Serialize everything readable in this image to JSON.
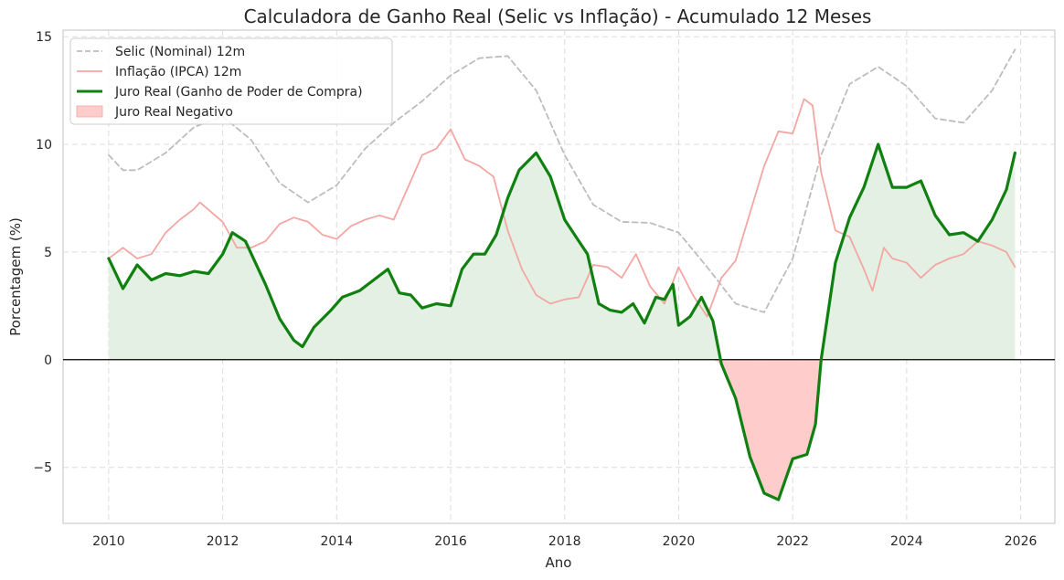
{
  "chart_data": {
    "type": "line",
    "title": "Calculadora de Ganho Real (Selic vs Inflação) - Acumulado 12 Meses",
    "xlabel": "Ano",
    "ylabel": "Porcentagem (%)",
    "xlim": [
      2009.2,
      2026.6
    ],
    "ylim": [
      -7.6,
      15.3
    ],
    "x_ticks": [
      2010,
      2012,
      2014,
      2016,
      2018,
      2020,
      2022,
      2024,
      2026
    ],
    "y_ticks": [
      -5,
      0,
      5,
      10,
      15
    ],
    "x_tick_labels": [
      "2010",
      "2012",
      "2014",
      "2016",
      "2018",
      "2020",
      "2022",
      "2024",
      "2026"
    ],
    "y_tick_labels": [
      "−5",
      "0",
      "5",
      "10",
      "15"
    ],
    "grid": true,
    "legend_position": "top-left",
    "zero_line": true,
    "series": [
      {
        "name": "Selic (Nominal) 12m",
        "color": "#bdbdbd",
        "style": "dashed",
        "points": [
          [
            2010.0,
            9.5
          ],
          [
            2010.25,
            8.8
          ],
          [
            2010.5,
            8.8
          ],
          [
            2011.0,
            9.6
          ],
          [
            2011.5,
            10.8
          ],
          [
            2012.0,
            11.3
          ],
          [
            2012.5,
            10.2
          ],
          [
            2013.0,
            8.2
          ],
          [
            2013.5,
            7.3
          ],
          [
            2014.0,
            8.1
          ],
          [
            2014.5,
            9.8
          ],
          [
            2015.0,
            11.0
          ],
          [
            2015.5,
            12.0
          ],
          [
            2016.0,
            13.2
          ],
          [
            2016.5,
            14.0
          ],
          [
            2017.0,
            14.1
          ],
          [
            2017.5,
            12.5
          ],
          [
            2018.0,
            9.5
          ],
          [
            2018.5,
            7.2
          ],
          [
            2019.0,
            6.4
          ],
          [
            2019.5,
            6.35
          ],
          [
            2020.0,
            5.9
          ],
          [
            2020.5,
            4.3
          ],
          [
            2021.0,
            2.6
          ],
          [
            2021.5,
            2.2
          ],
          [
            2022.0,
            4.7
          ],
          [
            2022.5,
            9.5
          ],
          [
            2023.0,
            12.8
          ],
          [
            2023.5,
            13.6
          ],
          [
            2024.0,
            12.7
          ],
          [
            2024.5,
            11.2
          ],
          [
            2025.0,
            11.0
          ],
          [
            2025.5,
            12.5
          ],
          [
            2025.9,
            14.4
          ]
        ]
      },
      {
        "name": "Inflação (IPCA) 12m",
        "color": "#f4a6a3",
        "style": "solid",
        "points": [
          [
            2010.0,
            4.7
          ],
          [
            2010.25,
            5.2
          ],
          [
            2010.5,
            4.7
          ],
          [
            2010.75,
            4.9
          ],
          [
            2011.0,
            5.9
          ],
          [
            2011.25,
            6.5
          ],
          [
            2011.5,
            7.0
          ],
          [
            2011.6,
            7.3
          ],
          [
            2012.0,
            6.4
          ],
          [
            2012.25,
            5.2
          ],
          [
            2012.5,
            5.2
          ],
          [
            2012.75,
            5.5
          ],
          [
            2013.0,
            6.3
          ],
          [
            2013.25,
            6.6
          ],
          [
            2013.5,
            6.4
          ],
          [
            2013.75,
            5.8
          ],
          [
            2014.0,
            5.6
          ],
          [
            2014.25,
            6.2
          ],
          [
            2014.5,
            6.5
          ],
          [
            2014.75,
            6.7
          ],
          [
            2015.0,
            6.5
          ],
          [
            2015.25,
            8.0
          ],
          [
            2015.5,
            9.5
          ],
          [
            2015.75,
            9.8
          ],
          [
            2016.0,
            10.7
          ],
          [
            2016.25,
            9.3
          ],
          [
            2016.5,
            9.0
          ],
          [
            2016.75,
            8.5
          ],
          [
            2017.0,
            6.0
          ],
          [
            2017.25,
            4.2
          ],
          [
            2017.5,
            3.0
          ],
          [
            2017.75,
            2.6
          ],
          [
            2018.0,
            2.8
          ],
          [
            2018.25,
            2.9
          ],
          [
            2018.5,
            4.4
          ],
          [
            2018.75,
            4.3
          ],
          [
            2019.0,
            3.8
          ],
          [
            2019.25,
            4.9
          ],
          [
            2019.5,
            3.4
          ],
          [
            2019.75,
            2.6
          ],
          [
            2020.0,
            4.3
          ],
          [
            2020.25,
            3.0
          ],
          [
            2020.5,
            2.0
          ],
          [
            2020.75,
            3.8
          ],
          [
            2021.0,
            4.6
          ],
          [
            2021.25,
            6.8
          ],
          [
            2021.5,
            9.0
          ],
          [
            2021.75,
            10.6
          ],
          [
            2022.0,
            10.5
          ],
          [
            2022.2,
            12.1
          ],
          [
            2022.35,
            11.8
          ],
          [
            2022.5,
            8.7
          ],
          [
            2022.75,
            6.0
          ],
          [
            2023.0,
            5.7
          ],
          [
            2023.25,
            4.2
          ],
          [
            2023.4,
            3.2
          ],
          [
            2023.6,
            5.2
          ],
          [
            2023.75,
            4.7
          ],
          [
            2024.0,
            4.5
          ],
          [
            2024.25,
            3.8
          ],
          [
            2024.5,
            4.4
          ],
          [
            2024.75,
            4.7
          ],
          [
            2025.0,
            4.9
          ],
          [
            2025.25,
            5.5
          ],
          [
            2025.5,
            5.3
          ],
          [
            2025.75,
            5.0
          ],
          [
            2025.9,
            4.3
          ]
        ]
      },
      {
        "name": "Juro Real (Ganho de Poder de Compra)",
        "color": "#108010",
        "style": "solid-thick",
        "points": [
          [
            2010.0,
            4.7
          ],
          [
            2010.25,
            3.3
          ],
          [
            2010.5,
            4.4
          ],
          [
            2010.75,
            3.7
          ],
          [
            2011.0,
            4.0
          ],
          [
            2011.25,
            3.9
          ],
          [
            2011.5,
            4.1
          ],
          [
            2011.75,
            4.0
          ],
          [
            2012.0,
            4.9
          ],
          [
            2012.17,
            5.9
          ],
          [
            2012.4,
            5.5
          ],
          [
            2012.75,
            3.5
          ],
          [
            2013.0,
            1.9
          ],
          [
            2013.25,
            0.9
          ],
          [
            2013.4,
            0.6
          ],
          [
            2013.6,
            1.5
          ],
          [
            2013.9,
            2.3
          ],
          [
            2014.1,
            2.9
          ],
          [
            2014.4,
            3.2
          ],
          [
            2014.6,
            3.6
          ],
          [
            2014.9,
            4.2
          ],
          [
            2015.1,
            3.1
          ],
          [
            2015.3,
            3.0
          ],
          [
            2015.5,
            2.4
          ],
          [
            2015.75,
            2.6
          ],
          [
            2016.0,
            2.5
          ],
          [
            2016.2,
            4.2
          ],
          [
            2016.4,
            4.9
          ],
          [
            2016.6,
            4.9
          ],
          [
            2016.8,
            5.8
          ],
          [
            2017.0,
            7.5
          ],
          [
            2017.2,
            8.8
          ],
          [
            2017.5,
            9.6
          ],
          [
            2017.75,
            8.5
          ],
          [
            2018.0,
            6.5
          ],
          [
            2018.25,
            5.5
          ],
          [
            2018.4,
            4.9
          ],
          [
            2018.6,
            2.6
          ],
          [
            2018.8,
            2.3
          ],
          [
            2019.0,
            2.2
          ],
          [
            2019.2,
            2.6
          ],
          [
            2019.4,
            1.7
          ],
          [
            2019.6,
            2.9
          ],
          [
            2019.75,
            2.8
          ],
          [
            2019.9,
            3.5
          ],
          [
            2020.0,
            1.6
          ],
          [
            2020.2,
            2.0
          ],
          [
            2020.4,
            2.9
          ],
          [
            2020.6,
            1.8
          ],
          [
            2020.75,
            -0.2
          ],
          [
            2021.0,
            -1.8
          ],
          [
            2021.25,
            -4.5
          ],
          [
            2021.5,
            -6.2
          ],
          [
            2021.75,
            -6.5
          ],
          [
            2022.0,
            -4.6
          ],
          [
            2022.25,
            -4.4
          ],
          [
            2022.4,
            -3.0
          ],
          [
            2022.5,
            0.0
          ],
          [
            2022.75,
            4.5
          ],
          [
            2023.0,
            6.6
          ],
          [
            2023.25,
            8.0
          ],
          [
            2023.5,
            10.0
          ],
          [
            2023.75,
            8.0
          ],
          [
            2024.0,
            8.0
          ],
          [
            2024.25,
            8.3
          ],
          [
            2024.5,
            6.7
          ],
          [
            2024.75,
            5.8
          ],
          [
            2025.0,
            5.9
          ],
          [
            2025.25,
            5.5
          ],
          [
            2025.5,
            6.5
          ],
          [
            2025.75,
            7.9
          ],
          [
            2025.9,
            9.6
          ]
        ]
      },
      {
        "name": "Juro Real Negativo",
        "color": "#ffcccc",
        "style": "fill"
      }
    ],
    "positive_fill_color": "#e3f0e3"
  }
}
